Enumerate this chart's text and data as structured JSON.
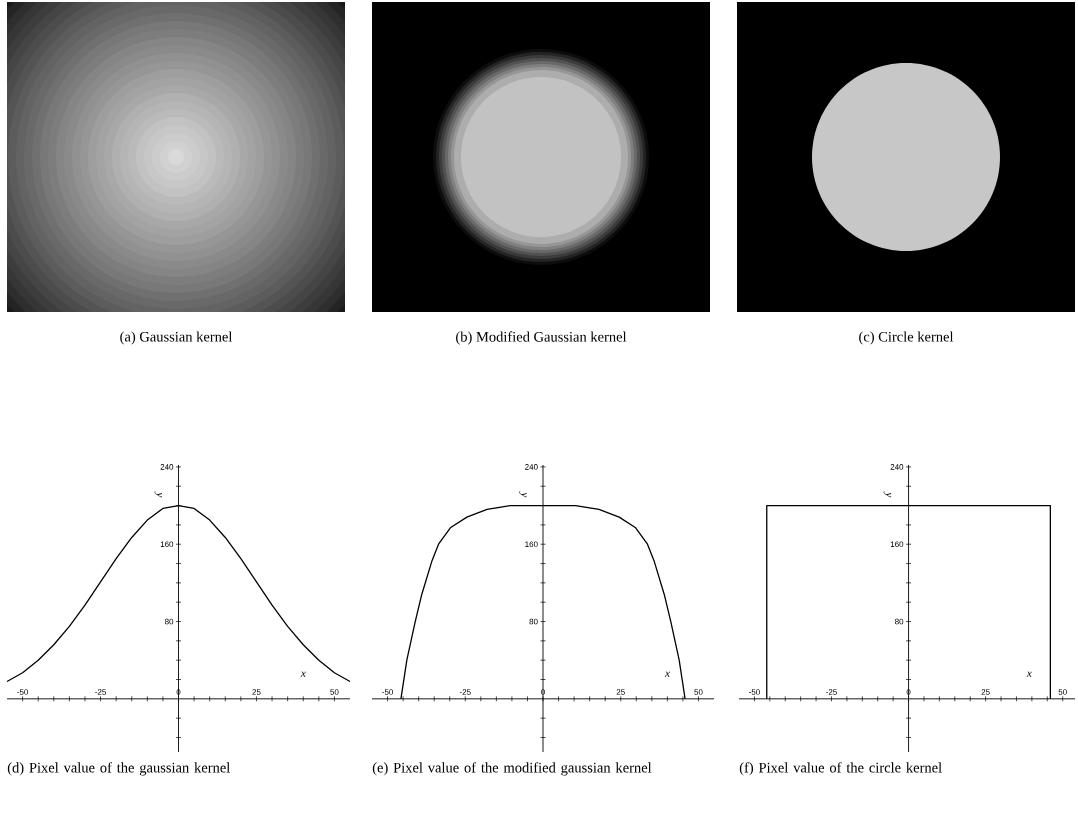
{
  "chart_data": [
    {
      "type": "other",
      "title": "(a) Gaussian kernel"
    },
    {
      "type": "other",
      "title": "(b) Modified Gaussian kernel"
    },
    {
      "type": "other",
      "title": "(c) Circle kernel"
    },
    {
      "type": "line",
      "title": "(d) Pixel value of the gaussian kernel",
      "xlabel": "x",
      "ylabel": "y",
      "color": "#000000",
      "x": [
        -55,
        -50,
        -45,
        -40,
        -35,
        -30,
        -25,
        -20,
        -15,
        -10,
        -5,
        0,
        5,
        10,
        15,
        20,
        25,
        30,
        35,
        40,
        45,
        50,
        55
      ],
      "values": [
        18,
        27,
        40,
        56,
        75,
        97,
        121,
        145,
        167,
        185,
        197,
        200,
        197,
        185,
        167,
        145,
        121,
        97,
        75,
        56,
        40,
        27,
        18
      ],
      "xlim": [
        -55,
        55
      ],
      "ylim": [
        -55,
        242
      ],
      "xticks": [
        -50,
        {
          "value": -45,
          "label": null
        },
        {
          "value": -40,
          "label": null
        },
        {
          "value": -35,
          "label": null
        },
        {
          "value": -30,
          "label": null
        },
        -25,
        {
          "value": -20,
          "label": null
        },
        {
          "value": -15,
          "label": null
        },
        {
          "value": -10,
          "label": null
        },
        {
          "value": -5,
          "label": null
        },
        0,
        {
          "value": 5,
          "label": null
        },
        {
          "value": 10,
          "label": null
        },
        {
          "value": 15,
          "label": null
        },
        {
          "value": 20,
          "label": null
        },
        25,
        {
          "value": 30,
          "label": null
        },
        {
          "value": 35,
          "label": null
        },
        {
          "value": 40,
          "label": null
        },
        {
          "value": 45,
          "label": null
        },
        50
      ],
      "yticks": [
        {
          "value": -40,
          "label": null
        },
        {
          "value": -20,
          "label": null
        },
        {
          "value": 20,
          "label": null
        },
        {
          "value": 40,
          "label": null
        },
        {
          "value": 60,
          "label": null
        },
        80,
        {
          "value": 100,
          "label": null
        },
        {
          "value": 120,
          "label": null
        },
        {
          "value": 140,
          "label": null
        },
        160,
        {
          "value": 180,
          "label": null
        },
        {
          "value": 200,
          "label": null
        },
        {
          "value": 220,
          "label": null
        },
        240
      ]
    },
    {
      "type": "line",
      "title": "(e) Pixel value of the modified gaussian kernel",
      "xlabel": "x",
      "ylabel": "y",
      "color": "#000000",
      "x": [
        -45.7,
        -43.8,
        -41.1,
        -39,
        -35.7,
        -33.6,
        -29.8,
        -24.5,
        -18,
        -10.5,
        0,
        10.5,
        18,
        24.5,
        29.8,
        33.6,
        35.7,
        39,
        41.1,
        43.8,
        45.7
      ],
      "values": [
        0,
        40,
        80,
        108,
        143,
        160,
        177,
        188,
        196,
        200,
        200,
        200,
        196,
        188,
        177,
        160,
        143,
        108,
        80,
        40,
        0
      ],
      "xlim": [
        -55,
        55
      ],
      "ylim": [
        -55,
        242
      ],
      "xticks": [
        -50,
        {
          "value": -45,
          "label": null
        },
        {
          "value": -40,
          "label": null
        },
        {
          "value": -35,
          "label": null
        },
        {
          "value": -30,
          "label": null
        },
        -25,
        {
          "value": -20,
          "label": null
        },
        {
          "value": -15,
          "label": null
        },
        {
          "value": -10,
          "label": null
        },
        {
          "value": -5,
          "label": null
        },
        0,
        {
          "value": 5,
          "label": null
        },
        {
          "value": 10,
          "label": null
        },
        {
          "value": 15,
          "label": null
        },
        {
          "value": 20,
          "label": null
        },
        25,
        {
          "value": 30,
          "label": null
        },
        {
          "value": 35,
          "label": null
        },
        {
          "value": 40,
          "label": null
        },
        {
          "value": 45,
          "label": null
        },
        50
      ],
      "yticks": [
        {
          "value": -40,
          "label": null
        },
        {
          "value": -20,
          "label": null
        },
        {
          "value": 20,
          "label": null
        },
        {
          "value": 40,
          "label": null
        },
        {
          "value": 60,
          "label": null
        },
        80,
        {
          "value": 100,
          "label": null
        },
        {
          "value": 120,
          "label": null
        },
        {
          "value": 140,
          "label": null
        },
        160,
        {
          "value": 180,
          "label": null
        },
        {
          "value": 200,
          "label": null
        },
        {
          "value": 220,
          "label": null
        },
        240
      ]
    },
    {
      "type": "line",
      "title": "(f) Pixel value of the circle kernel",
      "xlabel": "x",
      "ylabel": "y",
      "color": "#000000",
      "x": [
        -46,
        -46,
        46,
        46
      ],
      "values": [
        0,
        200,
        200,
        0
      ],
      "xlim": [
        -55,
        54
      ],
      "ylim": [
        -55,
        242
      ],
      "xticks": [
        -50,
        {
          "value": -45,
          "label": null
        },
        {
          "value": -40,
          "label": null
        },
        {
          "value": -35,
          "label": null
        },
        {
          "value": -30,
          "label": null
        },
        -25,
        {
          "value": -20,
          "label": null
        },
        {
          "value": -15,
          "label": null
        },
        {
          "value": -10,
          "label": null
        },
        {
          "value": -5,
          "label": null
        },
        0,
        {
          "value": 5,
          "label": null
        },
        {
          "value": 10,
          "label": null
        },
        {
          "value": 15,
          "label": null
        },
        {
          "value": 20,
          "label": null
        },
        25,
        {
          "value": 30,
          "label": null
        },
        {
          "value": 35,
          "label": null
        },
        {
          "value": 40,
          "label": null
        },
        {
          "value": 45,
          "label": null
        },
        50
      ],
      "yticks": [
        {
          "value": -40,
          "label": null
        },
        {
          "value": -20,
          "label": null
        },
        {
          "value": 20,
          "label": null
        },
        {
          "value": 40,
          "label": null
        },
        {
          "value": 60,
          "label": null
        },
        80,
        {
          "value": 100,
          "label": null
        },
        {
          "value": 120,
          "label": null
        },
        {
          "value": 140,
          "label": null
        },
        160,
        {
          "value": 180,
          "label": null
        },
        {
          "value": 200,
          "label": null
        },
        {
          "value": 220,
          "label": null
        },
        240
      ]
    }
  ]
}
